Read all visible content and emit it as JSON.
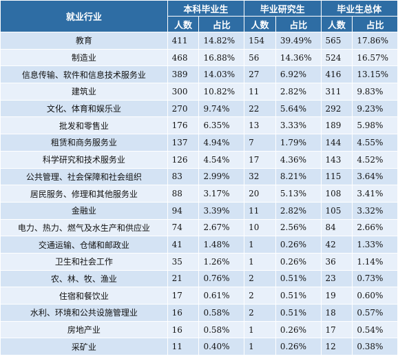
{
  "header": {
    "industry": "就业行业",
    "groups": [
      "本科毕业生",
      "毕业研究生",
      "毕业生总体"
    ],
    "sub": [
      "人数",
      "占比",
      "人数",
      "占比",
      "人数",
      "占比"
    ]
  },
  "rows": [
    {
      "industry": "教育",
      "vals": [
        "411",
        "14.82%",
        "154",
        "39.49%",
        "565",
        "17.86%"
      ]
    },
    {
      "industry": "制造业",
      "vals": [
        "468",
        "16.88%",
        "56",
        "14.36%",
        "524",
        "16.57%"
      ]
    },
    {
      "industry": "信息传输、软件和信息技术服务业",
      "vals": [
        "389",
        "14.03%",
        "27",
        "6.92%",
        "416",
        "13.15%"
      ]
    },
    {
      "industry": "建筑业",
      "vals": [
        "300",
        "10.82%",
        "11",
        "2.82%",
        "311",
        "9.83%"
      ]
    },
    {
      "industry": "文化、体育和娱乐业",
      "vals": [
        "270",
        "9.74%",
        "22",
        "5.64%",
        "292",
        "9.23%"
      ]
    },
    {
      "industry": "批发和零售业",
      "vals": [
        "176",
        "6.35%",
        "13",
        "3.33%",
        "189",
        "5.98%"
      ]
    },
    {
      "industry": "租赁和商务服务业",
      "vals": [
        "137",
        "4.94%",
        "7",
        "1.79%",
        "144",
        "4.55%"
      ]
    },
    {
      "industry": "科学研究和技术服务业",
      "vals": [
        "126",
        "4.54%",
        "17",
        "4.36%",
        "143",
        "4.52%"
      ]
    },
    {
      "industry": "公共管理、社会保障和社会组织",
      "vals": [
        "83",
        "2.99%",
        "32",
        "8.21%",
        "115",
        "3.64%"
      ]
    },
    {
      "industry": "居民服务、修理和其他服务业",
      "vals": [
        "88",
        "3.17%",
        "20",
        "5.13%",
        "108",
        "3.41%"
      ]
    },
    {
      "industry": "金融业",
      "vals": [
        "94",
        "3.39%",
        "11",
        "2.82%",
        "105",
        "3.32%"
      ]
    },
    {
      "industry": "电力、热力、燃气及水生产和供应业",
      "vals": [
        "74",
        "2.67%",
        "10",
        "2.56%",
        "84",
        "2.66%"
      ]
    },
    {
      "industry": "交通运输、仓储和邮政业",
      "vals": [
        "41",
        "1.48%",
        "1",
        "0.26%",
        "42",
        "1.33%"
      ]
    },
    {
      "industry": "卫生和社会工作",
      "vals": [
        "35",
        "1.26%",
        "1",
        "0.26%",
        "36",
        "1.14%"
      ]
    },
    {
      "industry": "农、林、牧、渔业",
      "vals": [
        "21",
        "0.76%",
        "2",
        "0.51%",
        "23",
        "0.73%"
      ]
    },
    {
      "industry": "住宿和餐饮业",
      "vals": [
        "17",
        "0.61%",
        "2",
        "0.51%",
        "19",
        "0.60%"
      ]
    },
    {
      "industry": "水利、环境和公共设施管理业",
      "vals": [
        "16",
        "0.58%",
        "2",
        "0.51%",
        "18",
        "0.57%"
      ]
    },
    {
      "industry": "房地产业",
      "vals": [
        "16",
        "0.58%",
        "1",
        "0.26%",
        "17",
        "0.54%"
      ]
    },
    {
      "industry": "采矿业",
      "vals": [
        "11",
        "0.40%",
        "1",
        "0.26%",
        "12",
        "0.38%"
      ]
    }
  ]
}
